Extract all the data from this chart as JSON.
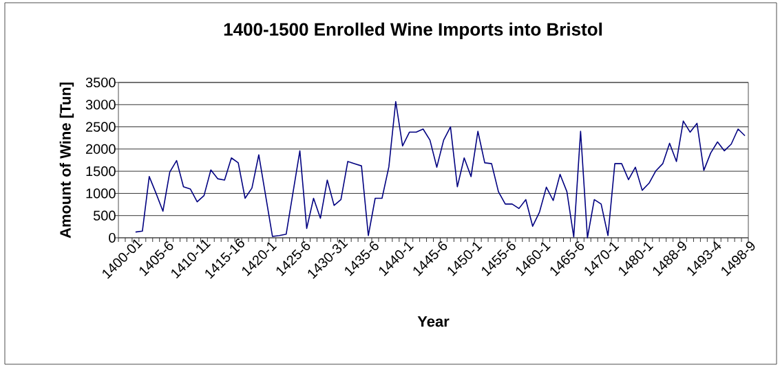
{
  "chart_data": {
    "type": "line",
    "title": "1400-1500 Enrolled Wine Imports into Bristol",
    "xlabel": "Year",
    "ylabel": "Amount of Wine [Tun]",
    "categories": [
      "1400-01",
      null,
      null,
      null,
      null,
      "1405-6",
      null,
      null,
      null,
      null,
      "1410-11",
      null,
      null,
      null,
      null,
      "1415-16",
      null,
      null,
      null,
      null,
      "1420-1",
      null,
      null,
      null,
      null,
      "1425-6",
      null,
      null,
      null,
      null,
      "1430-31",
      null,
      null,
      null,
      null,
      "1435-6",
      null,
      null,
      null,
      null,
      "1440-1",
      null,
      null,
      null,
      null,
      "1445-6",
      null,
      null,
      null,
      null,
      "1450-1",
      null,
      null,
      null,
      null,
      "1455-6",
      null,
      null,
      null,
      null,
      "1460-1",
      null,
      null,
      null,
      null,
      "1465-6",
      null,
      null,
      null,
      null,
      "1470-1",
      null,
      null,
      null,
      null,
      "1480-1",
      null,
      null,
      null,
      null,
      "1488-9",
      null,
      null,
      null,
      null,
      "1493-4",
      null,
      null,
      null,
      null,
      "1498-9",
      null
    ],
    "series": [
      {
        "color": "#000080",
        "values": [
          null,
          null,
          130,
          150,
          1380,
          1000,
          600,
          1480,
          1740,
          1150,
          1100,
          810,
          950,
          1530,
          1330,
          1300,
          1800,
          1690,
          890,
          1120,
          1870,
          950,
          30,
          50,
          80,
          1020,
          1960,
          210,
          890,
          440,
          1300,
          730,
          860,
          1720,
          1670,
          1620,
          50,
          890,
          890,
          1600,
          3070,
          2070,
          2380,
          2380,
          2450,
          2200,
          1590,
          2200,
          2500,
          1150,
          1800,
          1380,
          2400,
          1690,
          1670,
          1040,
          760,
          760,
          660,
          860,
          260,
          580,
          1140,
          840,
          1430,
          1040,
          20,
          2400,
          0,
          860,
          760,
          50,
          1670,
          1670,
          1310,
          1590,
          1070,
          1230,
          1510,
          1670,
          2130,
          1720,
          2630,
          2380,
          2580,
          1520,
          1910,
          2160,
          1960,
          2110,
          2450,
          2300
        ]
      }
    ],
    "ylim": [
      0,
      3500
    ],
    "yticks": [
      0,
      500,
      1000,
      1500,
      2000,
      2500,
      3000,
      3500
    ],
    "grid": "y"
  }
}
